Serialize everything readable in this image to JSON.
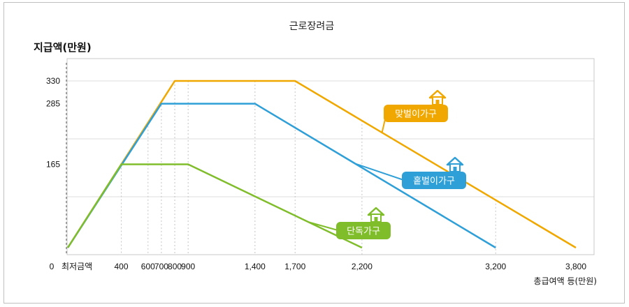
{
  "chart_data": {
    "type": "line",
    "title": "근로장려금",
    "ylabel": "지급액(만원)",
    "xlabel": "총급여액 등(만원)",
    "origin_label": "0",
    "min_label": "최저금액",
    "x_ticks": [
      400,
      600,
      700,
      800,
      900,
      1400,
      1700,
      2200,
      3200,
      3800
    ],
    "x_tick_labels": [
      "400",
      "600",
      "700",
      "800",
      "900",
      "1,400",
      "1,700",
      "2,200",
      "3,200",
      "3,800"
    ],
    "y_ticks": [
      165,
      285,
      330
    ],
    "y_tick_labels": [
      "165",
      "285",
      "330"
    ],
    "xlim": [
      0,
      3800
    ],
    "ylim": [
      0,
      330
    ],
    "grid": true,
    "series": [
      {
        "name": "맞벌이가구",
        "color": "#f0a800",
        "x": [
          0,
          800,
          1700,
          3800
        ],
        "y": [
          0,
          330,
          330,
          0
        ]
      },
      {
        "name": "홑벌이가구",
        "color": "#2f9fd8",
        "x": [
          0,
          700,
          1400,
          3200
        ],
        "y": [
          0,
          285,
          285,
          0
        ]
      },
      {
        "name": "단독가구",
        "color": "#80bd2b",
        "x": [
          0,
          400,
          900,
          2200
        ],
        "y": [
          0,
          165,
          165,
          0
        ]
      }
    ]
  }
}
